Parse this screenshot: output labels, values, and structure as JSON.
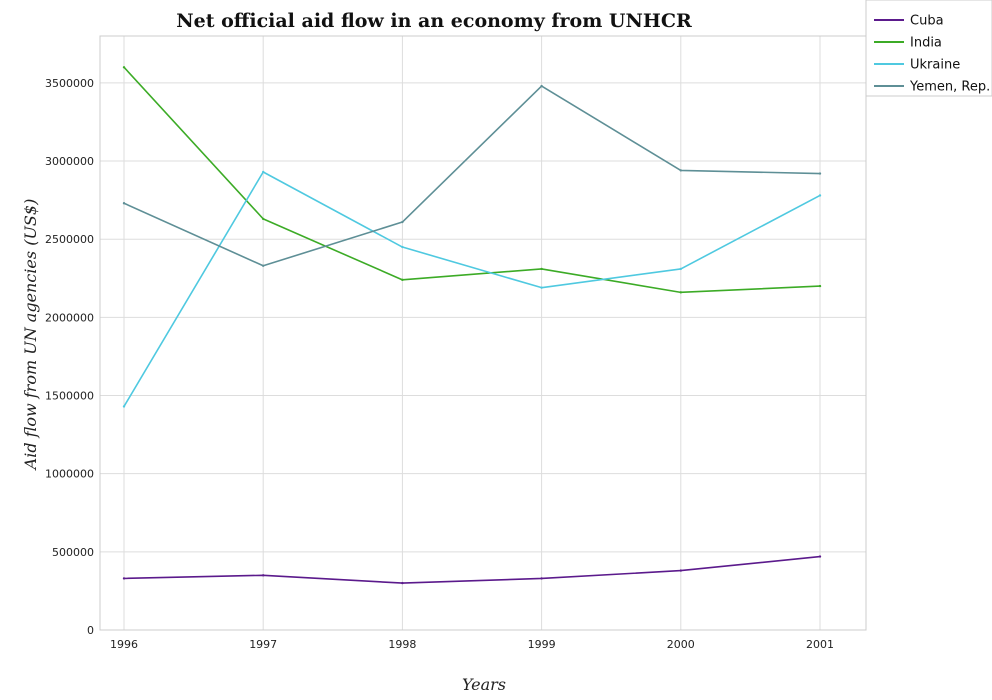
{
  "chart_data": {
    "type": "line",
    "title": "Net official aid flow in an economy from UNHCR",
    "xlabel": "Years",
    "ylabel": "Aid flow from UN agencies (US$)",
    "x": [
      "1996",
      "1997",
      "1998",
      "1999",
      "2000",
      "2001"
    ],
    "ylim": [
      0,
      3800000
    ],
    "yticks": [
      0,
      500000,
      1000000,
      1500000,
      2000000,
      2500000,
      3000000,
      3500000
    ],
    "ytick_labels": [
      "0",
      "500000",
      "1000000",
      "1500000",
      "2000000",
      "2500000",
      "3000000",
      "3500000"
    ],
    "grid": true,
    "legend_position": "top-right",
    "series": [
      {
        "name": "Cuba",
        "color": "#5b1a8c",
        "values": [
          330000,
          350000,
          300000,
          330000,
          380000,
          470000
        ]
      },
      {
        "name": "India",
        "color": "#3cab26",
        "values": [
          3600000,
          2630000,
          2240000,
          2310000,
          2160000,
          2200000
        ]
      },
      {
        "name": "Ukraine",
        "color": "#4fc9e0",
        "values": [
          1430000,
          2930000,
          2450000,
          2190000,
          2310000,
          2780000
        ]
      },
      {
        "name": "Yemen, Rep.",
        "color": "#5e8f96",
        "values": [
          2730000,
          2330000,
          2610000,
          3480000,
          2940000,
          2920000
        ]
      }
    ]
  }
}
